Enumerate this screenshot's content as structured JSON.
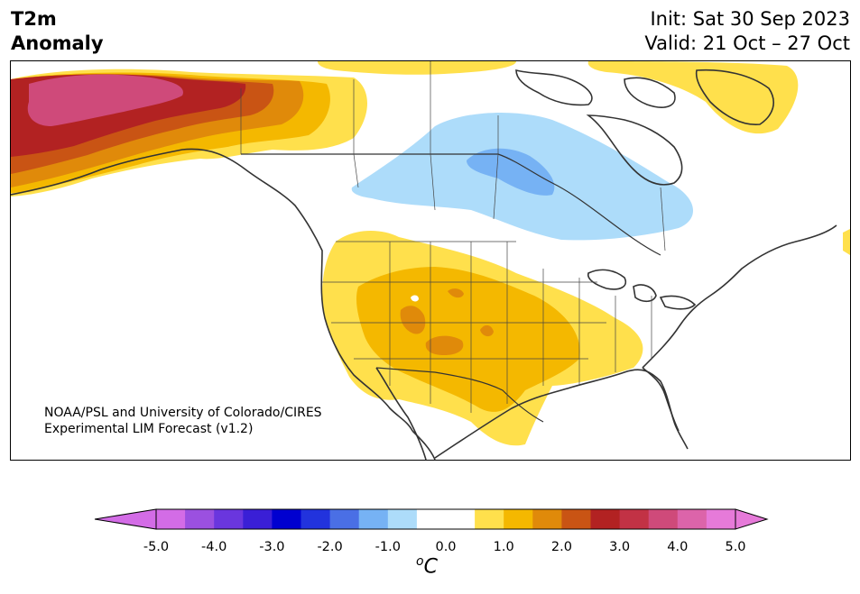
{
  "title": {
    "line1": "T2m",
    "line2": "Anomaly"
  },
  "info": {
    "init": "Init: Sat 30 Sep 2023",
    "valid": "Valid: 21 Oct – 27 Oct"
  },
  "credit": {
    "line1": "NOAA/PSL and University of Colorado/CIRES",
    "line2": "Experimental LIM Forecast (v1.2)"
  },
  "colorbar": {
    "units_sup": "o",
    "units": "C",
    "range": [
      -5.0,
      5.0
    ],
    "step": 0.5,
    "ticks": [
      "-5.0",
      "-4.0",
      "-3.0",
      "-2.0",
      "-1.0",
      "0.0",
      "1.0",
      "2.0",
      "3.0",
      "4.0",
      "5.0"
    ],
    "under_color": "#d36ce6",
    "over_color": "#e67ad9",
    "colors": [
      "#d36ce6",
      "#9b50e0",
      "#6a36de",
      "#3a1fd6",
      "#0000d0",
      "#2233dd",
      "#4a6fe5",
      "#76b2f4",
      "#addcfa",
      "#ffffff",
      "#ffffff",
      "#ffe04c",
      "#f4b800",
      "#e08a0a",
      "#c95414",
      "#b22222",
      "#c23245",
      "#cf4a7a",
      "#dc64aa",
      "#e67ad9"
    ]
  },
  "map_colors": {
    "light_blue": "#addcfa",
    "blue": "#76b2f4",
    "yellow": "#ffe04c",
    "gold": "#f4b800",
    "orange": "#e08a0a",
    "dark_orange": "#c95414",
    "red": "#b22222",
    "magenta": "#cf4a7a",
    "coast": "#333333"
  }
}
